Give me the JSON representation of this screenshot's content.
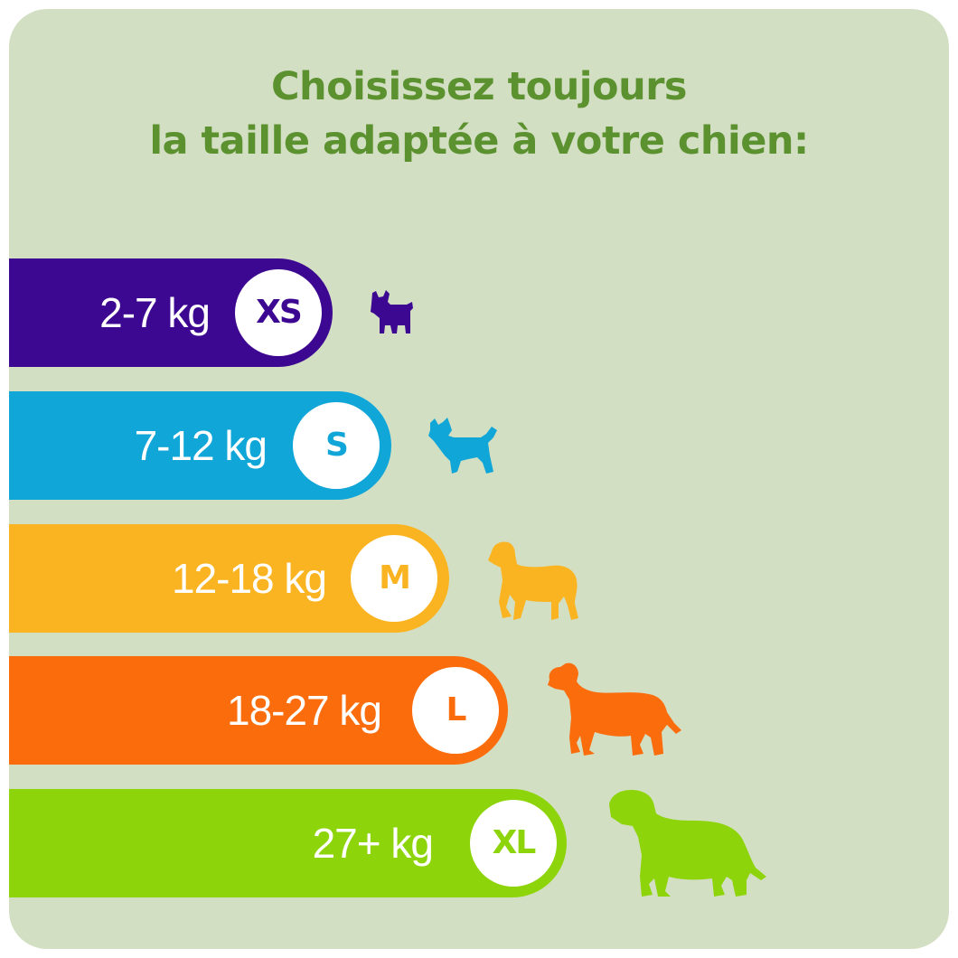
{
  "title": {
    "line1": "Choisissez toujours",
    "line2": "la taille adaptée à votre chien:"
  },
  "sizes": [
    {
      "weight": "2-7 kg",
      "size": "XS",
      "color": "#3d0891",
      "icon": "tiny-dog-icon"
    },
    {
      "weight": "7-12 kg",
      "size": "S",
      "color": "#10a6d8",
      "icon": "small-terrier-icon"
    },
    {
      "weight": "12-18 kg",
      "size": "M",
      "color": "#fbb421",
      "icon": "medium-retriever-icon"
    },
    {
      "weight": "18-27 kg",
      "size": "L",
      "color": "#fb6d0c",
      "icon": "large-dog-icon"
    },
    {
      "weight": "27+ kg",
      "size": "XL",
      "color": "#8ed40b",
      "icon": "giant-dog-icon"
    }
  ]
}
